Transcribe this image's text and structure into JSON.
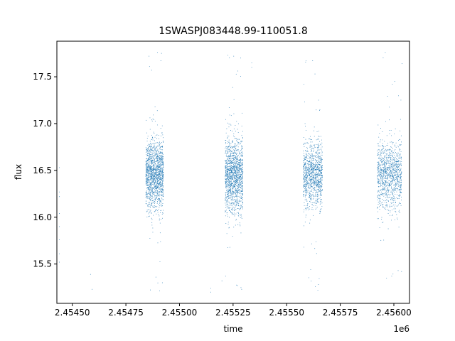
{
  "chart_data": {
    "type": "scatter",
    "title": "1SWASPJ083448.99-110051.8",
    "xlabel": "time",
    "ylabel": "flux",
    "x_offset_label": "1e6",
    "xlim": [
      2454428,
      2456073
    ],
    "ylim": [
      15.08,
      17.88
    ],
    "x_ticks": [
      2454500,
      2454750,
      2455000,
      2455250,
      2455500,
      2455750,
      2456000
    ],
    "x_tick_labels": [
      "2.45450",
      "2.45475",
      "2.45500",
      "2.45525",
      "2.45550",
      "2.45575",
      "2.45600"
    ],
    "y_ticks": [
      15.5,
      16.0,
      16.5,
      17.0,
      17.5
    ],
    "y_tick_labels": [
      "15.5",
      "16.0",
      "16.5",
      "17.0",
      "17.5"
    ],
    "grid": false,
    "legend": "none",
    "marker_color": "#1f77b4",
    "clusters": [
      {
        "x_start": 2454843,
        "x_end": 2454925,
        "y_center": 16.45,
        "y_spread": 0.18,
        "count": 1500
      },
      {
        "x_start": 2455213,
        "x_end": 2455296,
        "y_center": 16.45,
        "y_spread": 0.2,
        "count": 1400
      },
      {
        "x_start": 2455577,
        "x_end": 2455667,
        "y_center": 16.45,
        "y_spread": 0.17,
        "count": 1100
      },
      {
        "x_start": 2455923,
        "x_end": 2456036,
        "y_center": 16.45,
        "y_spread": 0.18,
        "count": 1100
      }
    ],
    "points": [
      [
        2454440,
        16.53
      ],
      [
        2454440,
        16.27
      ],
      [
        2454440,
        16.22
      ],
      [
        2454440,
        16.04
      ],
      [
        2454440,
        15.9
      ],
      [
        2454440,
        15.76
      ],
      [
        2454440,
        15.61
      ],
      [
        2454440,
        15.52
      ],
      [
        2454585,
        15.39
      ],
      [
        2454592,
        15.23
      ],
      [
        2455146,
        15.24
      ],
      [
        2455146,
        15.2
      ],
      [
        2455337,
        17.65
      ],
      [
        2455337,
        17.6
      ],
      [
        2455198,
        15.32
      ],
      [
        2455215,
        15.37
      ],
      [
        2455590,
        17.67
      ],
      [
        2455632,
        17.53
      ],
      [
        2455960,
        17.76
      ],
      [
        2456038,
        17.64
      ],
      [
        2456020,
        15.43
      ],
      [
        2456036,
        15.42
      ],
      [
        2455580,
        15.68
      ],
      [
        2455634,
        15.26
      ],
      [
        2454858,
        17.72
      ],
      [
        2454897,
        17.76
      ],
      [
        2454916,
        17.75
      ],
      [
        2455226,
        17.73
      ],
      [
        2455253,
        17.72
      ],
      [
        2455285,
        17.7
      ],
      [
        2454870,
        17.57
      ],
      [
        2454890,
        15.36
      ],
      [
        2454920,
        15.3
      ],
      [
        2455270,
        15.27
      ],
      [
        2455290,
        15.23
      ],
      [
        2455612,
        15.44
      ],
      [
        2455966,
        15.35
      ],
      [
        2455990,
        15.37
      ]
    ]
  }
}
